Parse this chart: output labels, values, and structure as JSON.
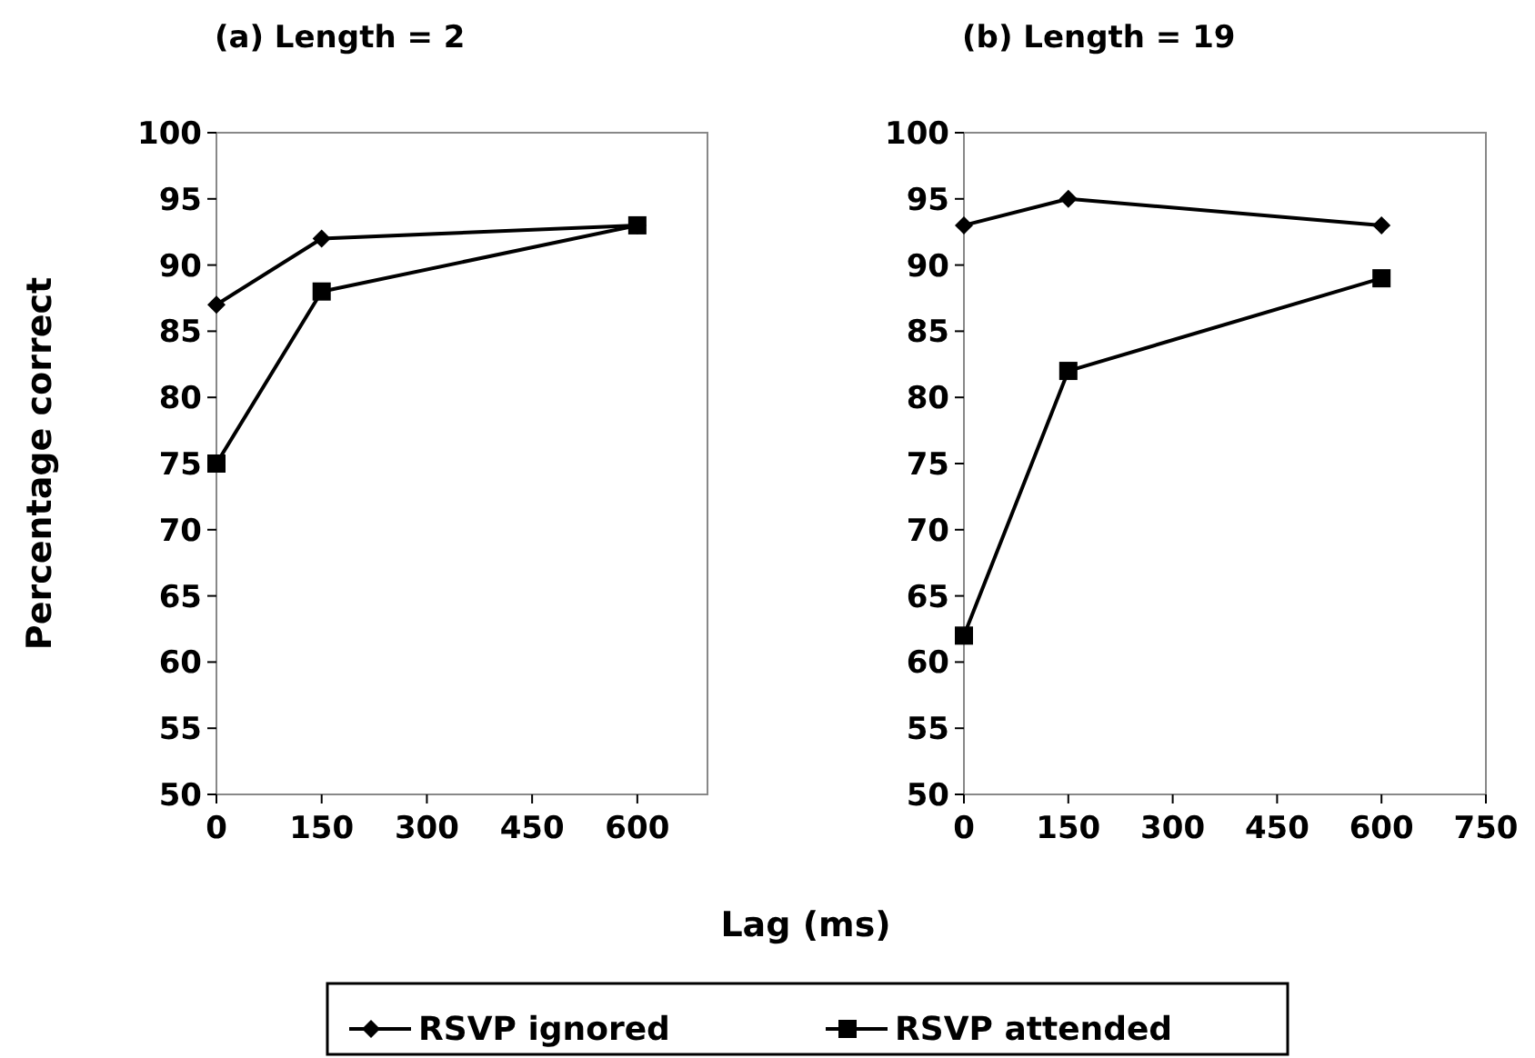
{
  "chart_data": [
    {
      "type": "line",
      "title": "(a)  Length = 2",
      "xlabel": "Lag (ms)",
      "ylabel": "Percentage correct",
      "x": [
        0,
        150,
        600
      ],
      "xlim": [
        0,
        700
      ],
      "xticks": [
        0,
        150,
        300,
        450,
        600
      ],
      "ylim": [
        50,
        100
      ],
      "yticks": [
        50,
        55,
        60,
        65,
        70,
        75,
        80,
        85,
        90,
        95,
        100
      ],
      "grid": false,
      "legend": "bottom",
      "series": [
        {
          "name": "RSVP ignored",
          "color": "#000000",
          "marker": "diamond",
          "values": [
            87,
            92,
            93
          ]
        },
        {
          "name": "RSVP attended",
          "color": "#000000",
          "marker": "square",
          "values": [
            75,
            88,
            93
          ]
        }
      ]
    },
    {
      "type": "line",
      "title": "(b)  Length = 19",
      "x": [
        0,
        150,
        600
      ],
      "xlim": [
        0,
        750
      ],
      "xticks": [
        0,
        150,
        300,
        450,
        600,
        750
      ],
      "ylim": [
        50,
        100
      ],
      "yticks": [
        50,
        55,
        60,
        65,
        70,
        75,
        80,
        85,
        90,
        95,
        100
      ],
      "grid": false,
      "series": [
        {
          "color": "#000000",
          "marker": "diamond",
          "values": [
            93,
            95,
            93
          ]
        },
        {
          "color": "#000000",
          "marker": "square",
          "values": [
            62,
            82,
            89
          ]
        }
      ]
    }
  ]
}
